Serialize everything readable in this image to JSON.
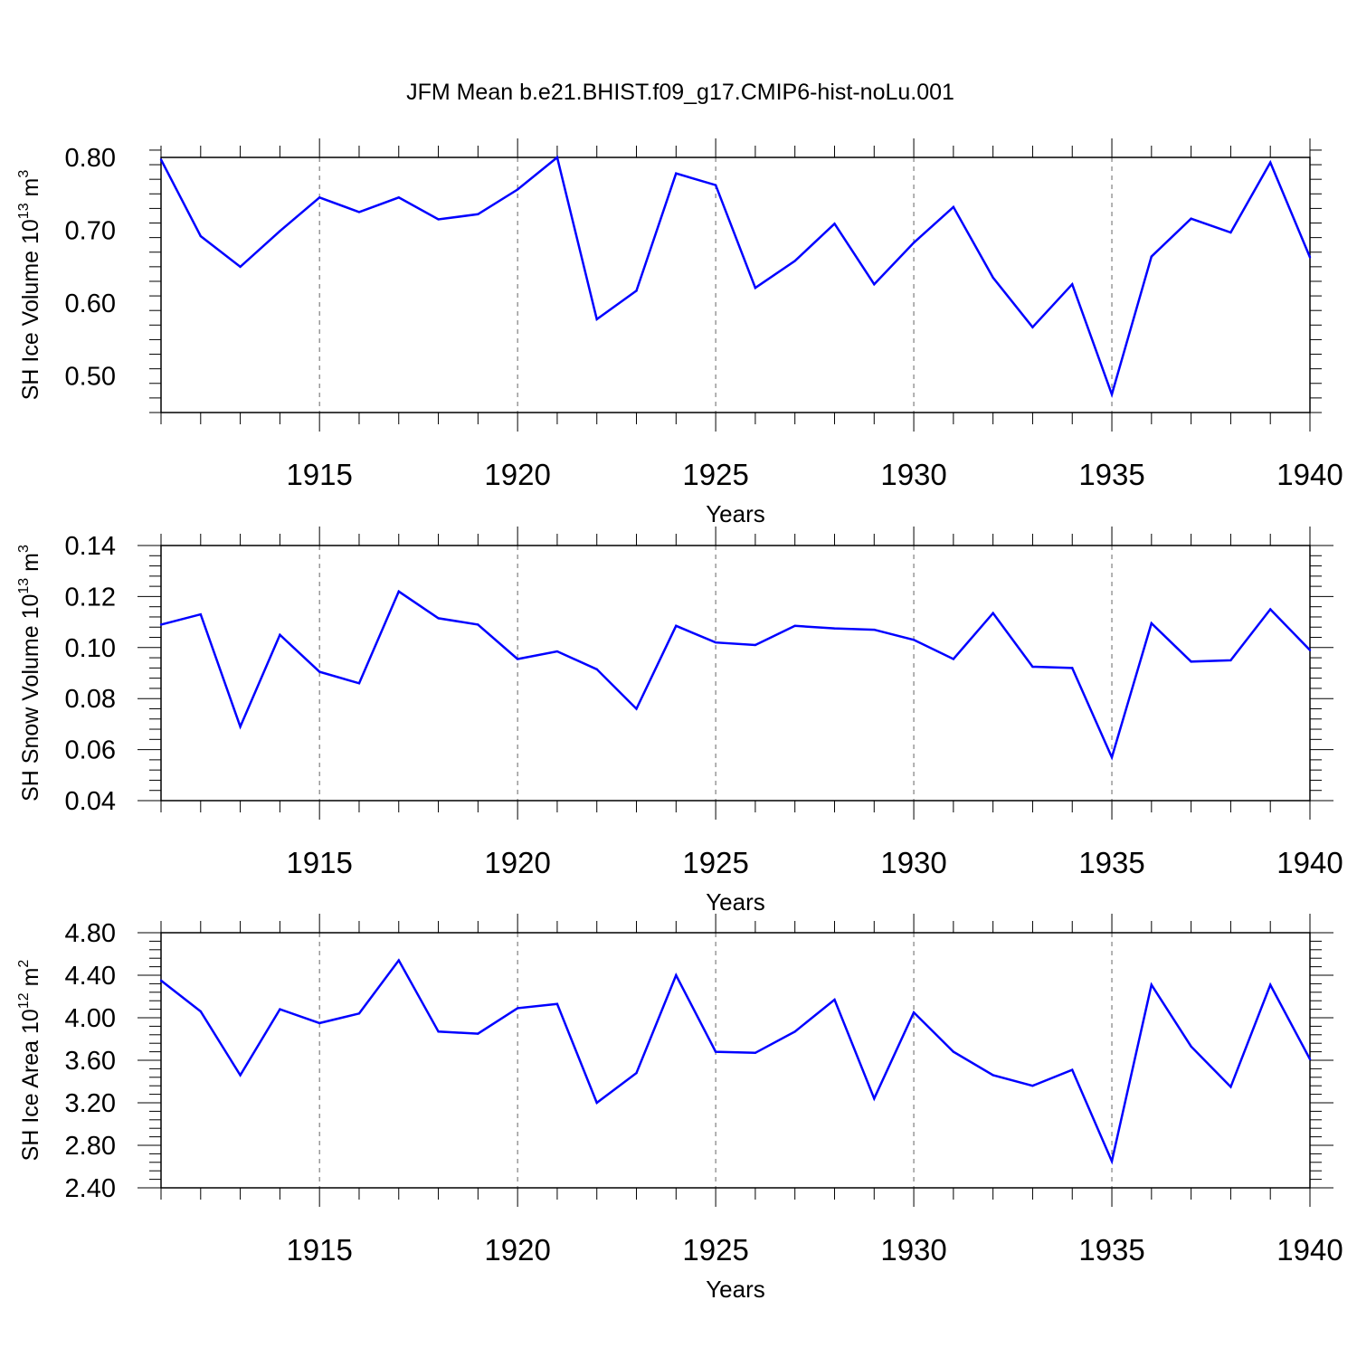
{
  "title": "JFM Mean b.e21.BHIST.f09_g17.CMIP6-hist-noLu.001",
  "colors": {
    "line": "#0000ff",
    "axis": "#000000",
    "grid": "#666666"
  },
  "chart_data": [
    {
      "type": "line",
      "ylabel": "SH Ice Volume 10",
      "ylabel_exp": "13",
      "ylabel_unit": " m",
      "ylabel_unit_exp": "3",
      "xlabel": "Years",
      "xlim": [
        1911,
        1940
      ],
      "ylim": [
        0.45,
        0.8
      ],
      "yticks": [
        0.5,
        0.6,
        0.7,
        0.8
      ],
      "yticklabels": [
        "0.50",
        "0.60",
        "0.70",
        "0.80"
      ],
      "xticks": [
        1915,
        1920,
        1925,
        1930,
        1935,
        1940
      ],
      "xticklabels": [
        "1915",
        "1920",
        "1925",
        "1930",
        "1935",
        "1940"
      ],
      "x": [
        1911,
        1912,
        1913,
        1914,
        1915,
        1916,
        1917,
        1918,
        1919,
        1920,
        1921,
        1922,
        1923,
        1924,
        1925,
        1926,
        1927,
        1928,
        1929,
        1930,
        1931,
        1932,
        1933,
        1934,
        1935,
        1936,
        1937,
        1938,
        1939,
        1940
      ],
      "values": [
        0.797,
        0.692,
        0.65,
        0.699,
        0.745,
        0.725,
        0.745,
        0.715,
        0.722,
        0.756,
        0.8,
        0.578,
        0.617,
        0.778,
        0.762,
        0.621,
        0.658,
        0.709,
        0.626,
        0.683,
        0.732,
        0.635,
        0.567,
        0.626,
        0.475,
        0.664,
        0.716,
        0.697,
        0.793,
        0.663
      ]
    },
    {
      "type": "line",
      "ylabel": "SH Snow Volume 10",
      "ylabel_exp": "13",
      "ylabel_unit": " m",
      "ylabel_unit_exp": "3",
      "xlabel": "Years",
      "xlim": [
        1911,
        1940
      ],
      "ylim": [
        0.04,
        0.14
      ],
      "yticks": [
        0.04,
        0.06,
        0.08,
        0.1,
        0.12,
        0.14
      ],
      "yticklabels": [
        "0.04",
        "0.06",
        "0.08",
        "0.10",
        "0.12",
        "0.14"
      ],
      "xticks": [
        1915,
        1920,
        1925,
        1930,
        1935,
        1940
      ],
      "xticklabels": [
        "1915",
        "1920",
        "1925",
        "1930",
        "1935",
        "1940"
      ],
      "x": [
        1911,
        1912,
        1913,
        1914,
        1915,
        1916,
        1917,
        1918,
        1919,
        1920,
        1921,
        1922,
        1923,
        1924,
        1925,
        1926,
        1927,
        1928,
        1929,
        1930,
        1931,
        1932,
        1933,
        1934,
        1935,
        1936,
        1937,
        1938,
        1939,
        1940
      ],
      "values": [
        0.109,
        0.113,
        0.069,
        0.105,
        0.0905,
        0.086,
        0.122,
        0.1115,
        0.109,
        0.0955,
        0.0985,
        0.0915,
        0.076,
        0.1085,
        0.102,
        0.101,
        0.1085,
        0.1075,
        0.107,
        0.103,
        0.0955,
        0.1135,
        0.0925,
        0.092,
        0.057,
        0.1095,
        0.0945,
        0.095,
        0.115,
        0.099
      ]
    },
    {
      "type": "line",
      "ylabel": "SH Ice Area 10",
      "ylabel_exp": "12",
      "ylabel_unit": " m",
      "ylabel_unit_exp": "2",
      "xlabel": "Years",
      "xlim": [
        1911,
        1940
      ],
      "ylim": [
        2.4,
        4.8
      ],
      "yticks": [
        2.4,
        2.8,
        3.2,
        3.6,
        4.0,
        4.4,
        4.8
      ],
      "yticklabels": [
        "2.40",
        "2.80",
        "3.20",
        "3.60",
        "4.00",
        "4.40",
        "4.80"
      ],
      "xticks": [
        1915,
        1920,
        1925,
        1930,
        1935,
        1940
      ],
      "xticklabels": [
        "1915",
        "1920",
        "1925",
        "1930",
        "1935",
        "1940"
      ],
      "x": [
        1911,
        1912,
        1913,
        1914,
        1915,
        1916,
        1917,
        1918,
        1919,
        1920,
        1921,
        1922,
        1923,
        1924,
        1925,
        1926,
        1927,
        1928,
        1929,
        1930,
        1931,
        1932,
        1933,
        1934,
        1935,
        1936,
        1937,
        1938,
        1939,
        1940
      ],
      "values": [
        4.35,
        4.06,
        3.46,
        4.08,
        3.95,
        4.04,
        4.54,
        3.87,
        3.85,
        4.09,
        4.13,
        3.2,
        3.48,
        4.4,
        3.68,
        3.67,
        3.87,
        4.17,
        3.24,
        4.05,
        3.68,
        3.46,
        3.36,
        3.51,
        2.65,
        4.31,
        3.73,
        3.35,
        4.31,
        3.61
      ]
    }
  ]
}
